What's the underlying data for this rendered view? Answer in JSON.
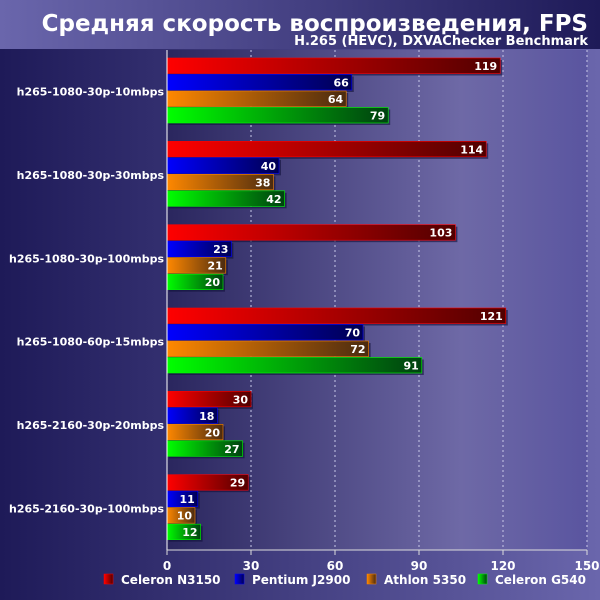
{
  "chart_data": {
    "type": "bar",
    "orientation": "horizontal",
    "title": "Средняя скорость воспроизведения, FPS",
    "subtitle": "H.265 (HEVC), DXVAChecker Benchmark",
    "categories": [
      "h265-1080-30p-10mbps",
      "h265-1080-30p-30mbps",
      "h265-1080-30p-100mbps",
      "h265-1080-60p-15mbps",
      "h265-2160-30p-20mbps",
      "h265-2160-30p-100mbps"
    ],
    "series": [
      {
        "name": "Celeron N3150",
        "color": "#ff0000",
        "dark": "#500000",
        "values": [
          119,
          114,
          103,
          121,
          30,
          29
        ]
      },
      {
        "name": "Pentium J2900",
        "color": "#0000ff",
        "dark": "#000050",
        "values": [
          66,
          40,
          23,
          70,
          18,
          11
        ]
      },
      {
        "name": "Athlon 5350",
        "color": "#ff8800",
        "dark": "#4a2a10",
        "values": [
          64,
          38,
          21,
          72,
          20,
          10
        ]
      },
      {
        "name": "Celeron G540",
        "color": "#00ff00",
        "dark": "#004010",
        "values": [
          79,
          42,
          20,
          91,
          27,
          12
        ]
      }
    ],
    "xlim": [
      0,
      150
    ],
    "xticks": [
      0,
      30,
      60,
      90,
      120,
      150
    ],
    "grid": true,
    "legend": "bottom"
  }
}
